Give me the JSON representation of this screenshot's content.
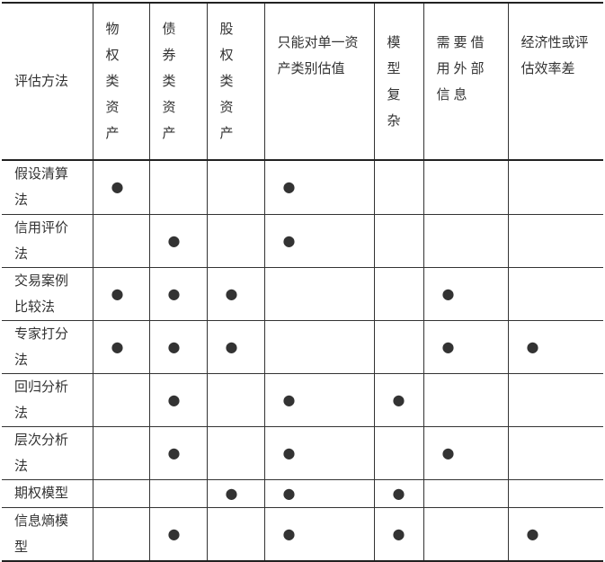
{
  "header": [
    "评估方法",
    "物权类资产",
    "债券类资产",
    "股权类资产",
    "只能对单一资产类别估值",
    "模型复杂",
    "需要借用外部信息",
    "经济性或评估效率差"
  ],
  "mark": "●",
  "rows": [
    {
      "method": "假设清算法",
      "marks": [
        1,
        0,
        0,
        1,
        0,
        0,
        0
      ]
    },
    {
      "method": "信用评价法",
      "marks": [
        0,
        1,
        0,
        1,
        0,
        0,
        0
      ]
    },
    {
      "method": "交易案例比较法",
      "marks": [
        1,
        1,
        1,
        0,
        0,
        1,
        0
      ]
    },
    {
      "method": "专家打分法",
      "marks": [
        1,
        1,
        1,
        0,
        0,
        1,
        1
      ]
    },
    {
      "method": "回归分析法",
      "marks": [
        0,
        1,
        0,
        1,
        1,
        0,
        0
      ]
    },
    {
      "method": "层次分析法",
      "marks": [
        0,
        1,
        0,
        1,
        0,
        1,
        0
      ]
    },
    {
      "method": "期权模型",
      "marks": [
        0,
        0,
        1,
        1,
        1,
        0,
        0
      ]
    },
    {
      "method": "信息熵模型",
      "marks": [
        0,
        1,
        0,
        1,
        1,
        0,
        1
      ]
    }
  ]
}
